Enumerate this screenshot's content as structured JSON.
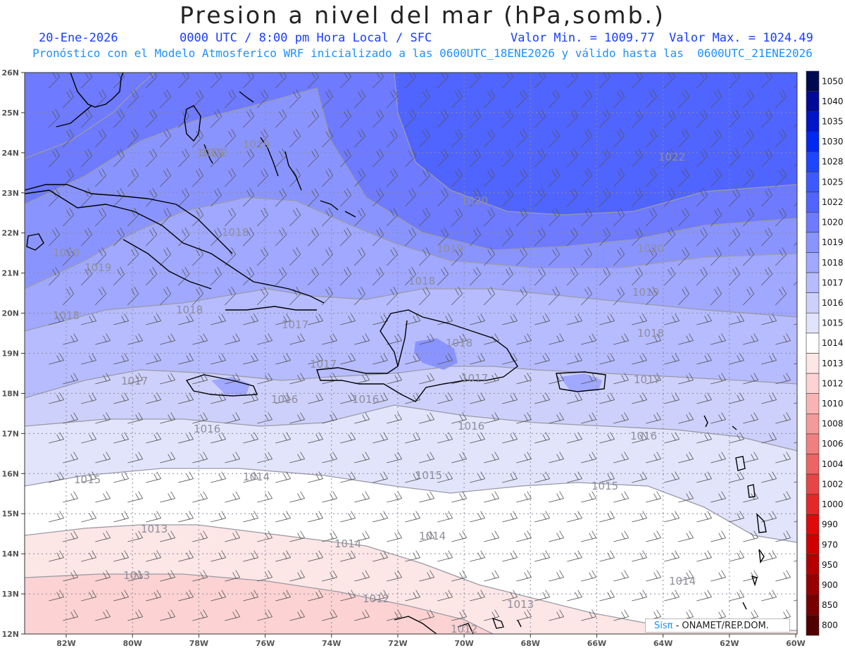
{
  "title": "Presion a nivel del mar (hPa,somb.)",
  "date": "20-Ene-2026",
  "time_info": "0000 UTC / 8:00 pm Hora Local / SFC",
  "min_max": "Valor Min. = 1009.77  Valor Max. = 1024.49",
  "subtitle": "Pronóstico con el Modelo Atmosferico WRF inicializado a las 0600UTC_18ENE2026 y válido hasta las  0600UTC_21ENE2026",
  "credit_brand": "Sisπ",
  "credit_text": " - ONAMET/REP.DOM.",
  "lat_labels": [
    "26N",
    "25N",
    "24N",
    "23N",
    "22N",
    "21N",
    "20N",
    "19N",
    "18N",
    "17N",
    "16N",
    "15N",
    "14N",
    "13N",
    "12N"
  ],
  "lon_labels": [
    "82W",
    "80W",
    "78W",
    "76W",
    "74W",
    "72W",
    "70W",
    "68W",
    "66W",
    "64W",
    "62W",
    "60W"
  ],
  "colorbar": [
    {
      "label": "1050",
      "color": "#000a50"
    },
    {
      "label": "1040",
      "color": "#000a96"
    },
    {
      "label": "1035",
      "color": "#0014c8"
    },
    {
      "label": "1030",
      "color": "#0028f0"
    },
    {
      "label": "1028",
      "color": "#1e46ff"
    },
    {
      "label": "1025",
      "color": "#3c5aff"
    },
    {
      "label": "1022",
      "color": "#5064ff"
    },
    {
      "label": "1020",
      "color": "#6e7aff"
    },
    {
      "label": "1019",
      "color": "#8a94ff"
    },
    {
      "label": "1018",
      "color": "#a0a8ff"
    },
    {
      "label": "1017",
      "color": "#b6bcff"
    },
    {
      "label": "1016",
      "color": "#cdd0fa"
    },
    {
      "label": "1015",
      "color": "#e2e4fb"
    },
    {
      "label": "1014",
      "color": "#ffffff"
    },
    {
      "label": "1013",
      "color": "#fde6e6"
    },
    {
      "label": "1012",
      "color": "#fcd2d2"
    },
    {
      "label": "1010",
      "color": "#f8b4b4"
    },
    {
      "label": "1008",
      "color": "#f49a9a"
    },
    {
      "label": "1006",
      "color": "#f08080"
    },
    {
      "label": "1004",
      "color": "#ec6464"
    },
    {
      "label": "1002",
      "color": "#e84646"
    },
    {
      "label": "1000",
      "color": "#e42828"
    },
    {
      "label": "990",
      "color": "#e00a0a"
    },
    {
      "label": "970",
      "color": "#d00000"
    },
    {
      "label": "950",
      "color": "#b40000"
    },
    {
      "label": "900",
      "color": "#960000"
    },
    {
      "label": "850",
      "color": "#780000"
    },
    {
      "label": "800",
      "color": "#500000"
    }
  ],
  "isobar_labels": [
    "1022",
    "1022",
    "1020",
    "1020",
    "1020",
    "1019",
    "1019",
    "1019",
    "1019",
    "1019",
    "1018",
    "1018",
    "1018",
    "1018",
    "1018",
    "1018",
    "1017",
    "1017",
    "1017",
    "1017",
    "1017",
    "1016",
    "1016",
    "1016",
    "1016",
    "1016",
    "1015",
    "1015",
    "1015",
    "1014",
    "1014",
    "1014",
    "1014",
    "1013",
    "1013",
    "1013",
    "1012",
    "1012"
  ]
}
